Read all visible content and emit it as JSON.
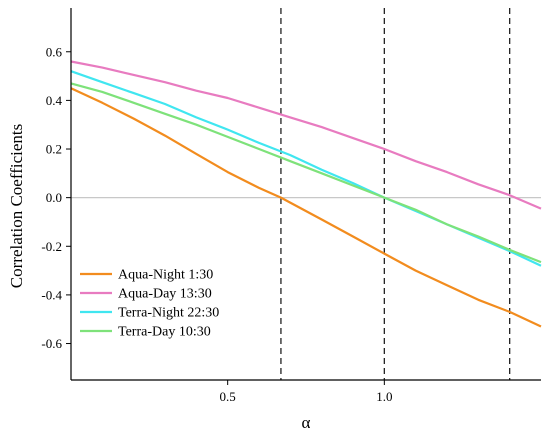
{
  "chart_data": {
    "type": "line",
    "xlabel": "α",
    "ylabel": "Correlation Coefficients",
    "xlim": [
      0.0,
      1.5
    ],
    "ylim": [
      -0.75,
      0.78
    ],
    "xticks": [
      0.5,
      1.0
    ],
    "xtick_labels": [
      "0.5",
      "1.0"
    ],
    "yticks": [
      -0.6,
      -0.4,
      -0.2,
      0.0,
      0.2,
      0.4,
      0.6
    ],
    "ytick_labels": [
      "-0.6",
      "-0.4",
      "-0.2",
      "0.0",
      "0.2",
      "0.4",
      "0.6"
    ],
    "grid": false,
    "legend_position": "bottom-left",
    "reference_hline": 0.0,
    "vlines": [
      0.67,
      1.0,
      1.4
    ],
    "series": [
      {
        "name": "Aqua-Night 1:30",
        "color": "#f28c1e",
        "x": [
          0.0,
          0.1,
          0.2,
          0.3,
          0.4,
          0.5,
          0.6,
          0.67,
          0.8,
          0.9,
          1.0,
          1.1,
          1.2,
          1.3,
          1.4,
          1.5
        ],
        "y": [
          0.45,
          0.39,
          0.325,
          0.255,
          0.18,
          0.105,
          0.04,
          0.0,
          -0.09,
          -0.16,
          -0.23,
          -0.3,
          -0.36,
          -0.42,
          -0.47,
          -0.53
        ]
      },
      {
        "name": "Aqua-Day 13:30",
        "color": "#e87bc0",
        "x": [
          0.0,
          0.1,
          0.2,
          0.3,
          0.4,
          0.5,
          0.6,
          0.7,
          0.8,
          0.9,
          1.0,
          1.1,
          1.2,
          1.3,
          1.4,
          1.5
        ],
        "y": [
          0.56,
          0.535,
          0.505,
          0.475,
          0.44,
          0.41,
          0.37,
          0.33,
          0.29,
          0.245,
          0.2,
          0.15,
          0.105,
          0.055,
          0.01,
          -0.045
        ]
      },
      {
        "name": "Terra-Night 22:30",
        "color": "#40e6f0",
        "x": [
          0.0,
          0.1,
          0.2,
          0.3,
          0.4,
          0.5,
          0.6,
          0.7,
          0.8,
          0.9,
          1.0,
          1.1,
          1.2,
          1.3,
          1.4,
          1.5
        ],
        "y": [
          0.52,
          0.475,
          0.43,
          0.385,
          0.33,
          0.28,
          0.225,
          0.175,
          0.115,
          0.06,
          0.0,
          -0.055,
          -0.11,
          -0.165,
          -0.22,
          -0.28
        ]
      },
      {
        "name": "Terra-Day 10:30",
        "color": "#7ee27a",
        "x": [
          0.0,
          0.1,
          0.2,
          0.3,
          0.4,
          0.5,
          0.6,
          0.7,
          0.8,
          0.9,
          1.0,
          1.1,
          1.2,
          1.3,
          1.4,
          1.5
        ],
        "y": [
          0.47,
          0.435,
          0.39,
          0.345,
          0.3,
          0.25,
          0.2,
          0.15,
          0.1,
          0.05,
          0.0,
          -0.05,
          -0.11,
          -0.16,
          -0.215,
          -0.265
        ]
      }
    ]
  }
}
